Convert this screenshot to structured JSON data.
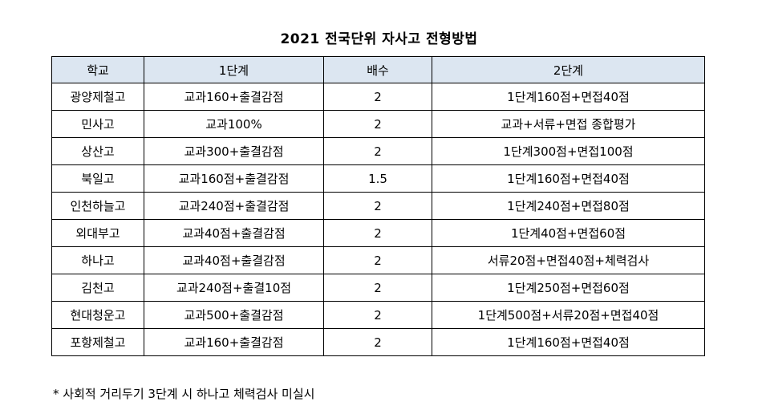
{
  "title": "2021 전국단위 자사고 전형방법",
  "headers": [
    "학교",
    "1단계",
    "배수",
    "2단계"
  ],
  "rows": [
    [
      "광양제철고",
      "교과160+출결감점",
      "2",
      "1단계160점+면접40점"
    ],
    [
      "민사고",
      "교과100%",
      "2",
      "교과+서류+면접 종합평가"
    ],
    [
      "상산고",
      "교과300+출결감점",
      "2",
      "1단계300점+면접100점"
    ],
    [
      "북일고",
      "교과160점+출결감점",
      "1.5",
      "1단계160점+면접40점"
    ],
    [
      "인천하늘고",
      "교과240점+출결감점",
      "2",
      "1단계240점+면접80점"
    ],
    [
      "외대부고",
      "교과40점+출결감점",
      "2",
      "1단계40점+면접60점"
    ],
    [
      "하나고",
      "교과40점+출결감점",
      "2",
      "서류20점+면접40점+체력검사"
    ],
    [
      "김천고",
      "교과240점+출결10점",
      "2",
      "1단계250점+면접60점"
    ],
    [
      "현대청운고",
      "교과500+출결감점",
      "2",
      "1단계500점+서류20점+면접40점"
    ],
    [
      "포항제철고",
      "교과160+출결감점",
      "2",
      "1단계160점+면접40점"
    ]
  ],
  "note": "* 사회적 거리두기 3단계 시 하나고 체력검사 미실시",
  "colors": {
    "header_bg": "#dce6f1",
    "border": "#000000"
  }
}
